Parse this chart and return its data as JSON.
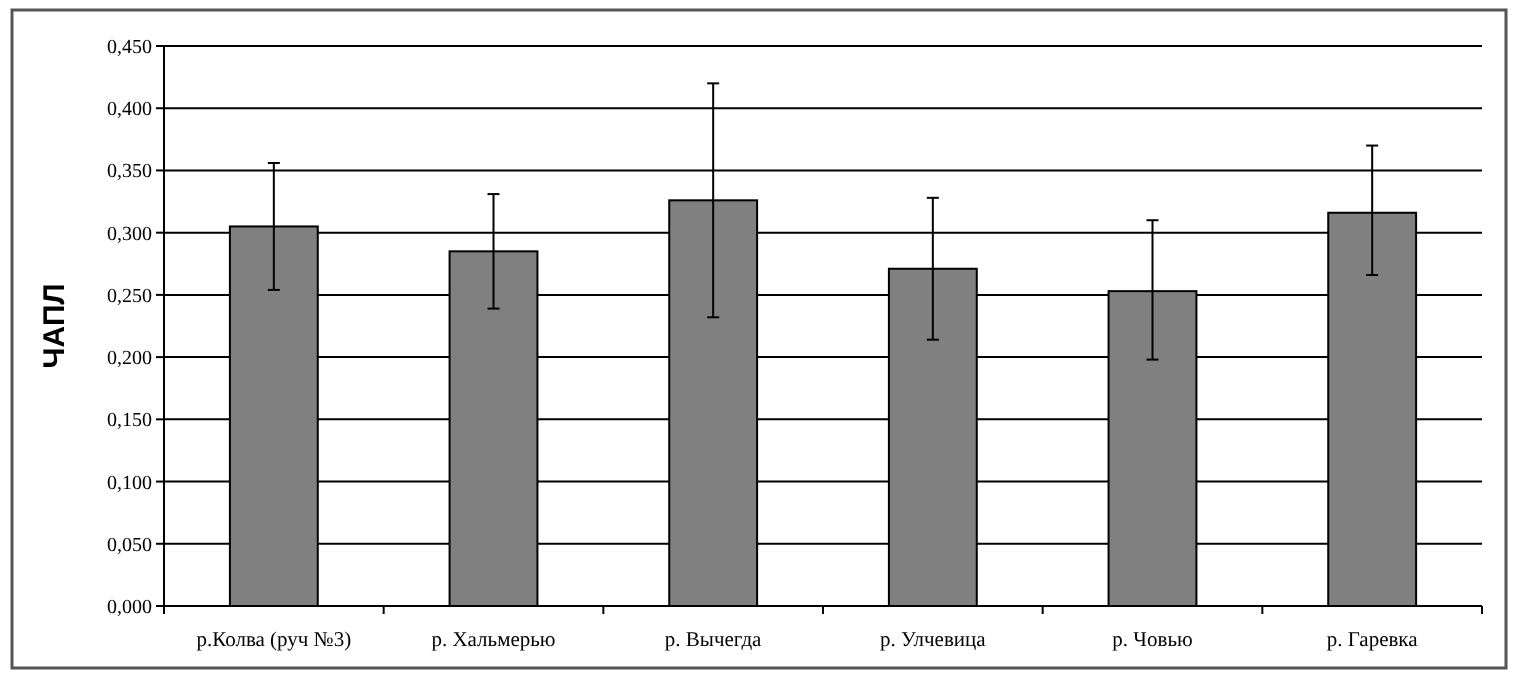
{
  "chart_data": {
    "type": "bar",
    "ylabel": "ЧАПЛ",
    "categories": [
      "р.Колва (руч №3)",
      "р. Хальмерью",
      "р. Вычегда",
      "р. Улчевица",
      "р. Човью",
      "р. Гаревка"
    ],
    "values": [
      0.305,
      0.285,
      0.326,
      0.271,
      0.253,
      0.316
    ],
    "errors": [
      [
        0.254,
        0.356
      ],
      [
        0.239,
        0.331
      ],
      [
        0.232,
        0.42
      ],
      [
        0.214,
        0.328
      ],
      [
        0.198,
        0.31
      ],
      [
        0.266,
        0.37
      ]
    ],
    "color": "#808080",
    "ylim": [
      0,
      0.45
    ],
    "yticks": [
      {
        "value": 0,
        "label": "0,000"
      },
      {
        "value": 0.05,
        "label": "0,050"
      },
      {
        "value": 0.1,
        "label": "0,100"
      },
      {
        "value": 0.15,
        "label": "0,150"
      },
      {
        "value": 0.2,
        "label": "0,200"
      },
      {
        "value": 0.25,
        "label": "0,250"
      },
      {
        "value": 0.3,
        "label": "0,300"
      },
      {
        "value": 0.35,
        "label": "0,350"
      },
      {
        "value": 0.4,
        "label": "0,400"
      },
      {
        "value": 0.45,
        "label": "0,450"
      }
    ],
    "grid": "y"
  }
}
